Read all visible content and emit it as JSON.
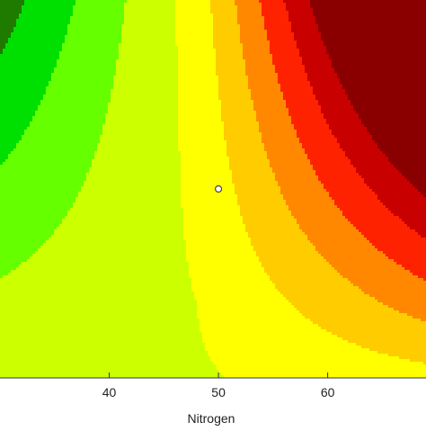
{
  "chart_data": {
    "type": "heatmap",
    "subtype": "filled-contour",
    "title": "",
    "xlabel": "Nitrogen",
    "ylabel": "",
    "xlim": [
      30,
      69
    ],
    "x_ticks": [
      40,
      50,
      60
    ],
    "x_tick_labels": [
      "40",
      "50",
      "60"
    ],
    "grid": false,
    "legend": "none",
    "colormap": [
      "#1f7a00",
      "#00e000",
      "#66ff00",
      "#ccff00",
      "#ffff00",
      "#ffcc00",
      "#ff8800",
      "#ff2200",
      "#c80000",
      "#8a0000"
    ],
    "response_trend": "low (green) at upper-left, minimum near x=46, high (red) at upper-right",
    "center_point": {
      "x": 50,
      "description": "design center point marker"
    }
  }
}
